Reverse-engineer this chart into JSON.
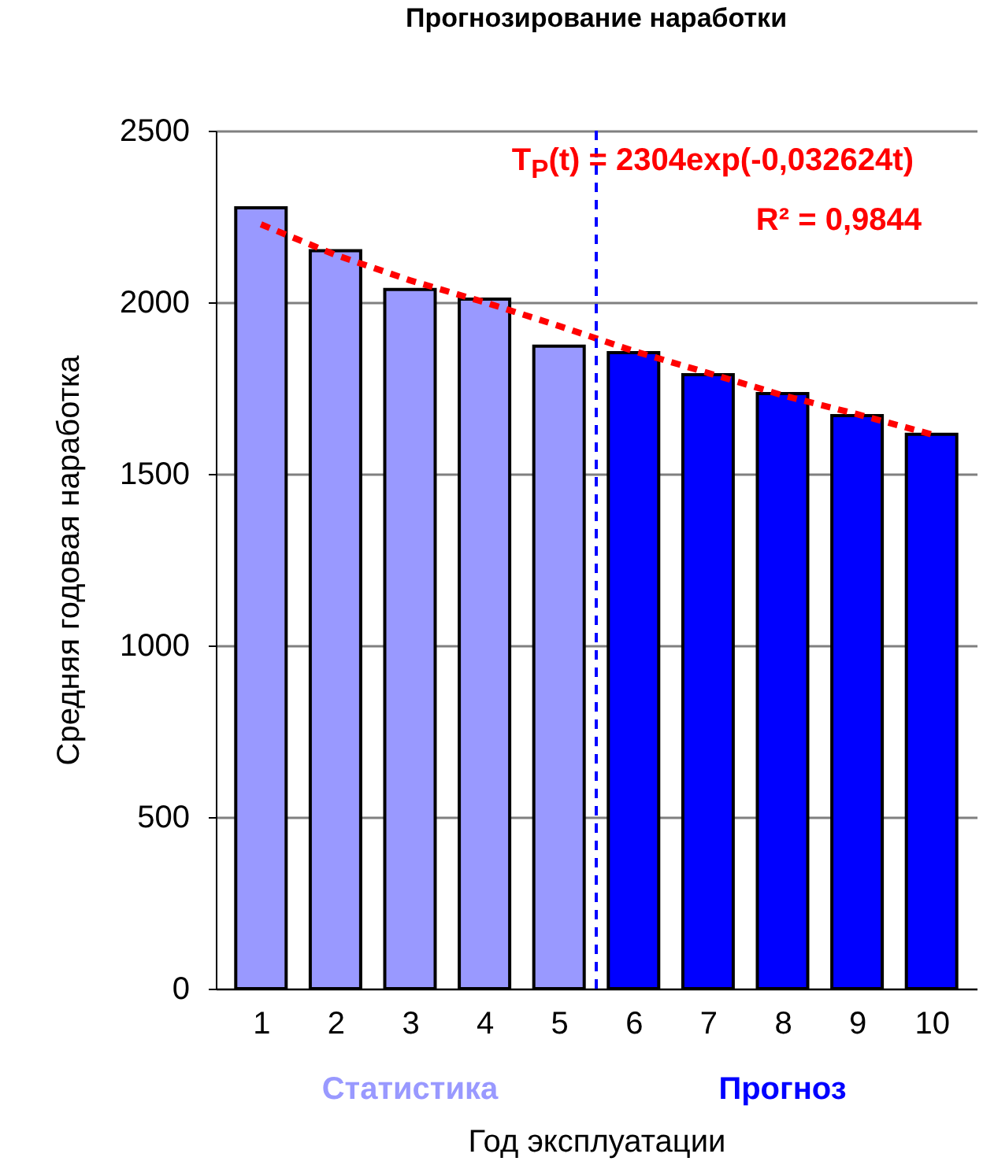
{
  "chart_data": {
    "type": "bar",
    "title": "Прогнозирование наработки",
    "xlabel": "Год эксплуатации",
    "ylabel": "Средняя годовая наработка",
    "x": [
      1,
      2,
      3,
      4,
      5,
      6,
      7,
      8,
      9,
      10
    ],
    "xlim": [
      0.5,
      10.5
    ],
    "xticks": [
      1,
      2,
      3,
      4,
      5,
      6,
      7,
      8,
      9,
      10
    ],
    "ylim": [
      0,
      2500
    ],
    "yticks": [
      0,
      500,
      1000,
      1500,
      2000,
      2500
    ],
    "grid": "y",
    "series": [
      {
        "name": "Статистика",
        "color": "#9999ff",
        "values": [
          2275,
          2150,
          2037,
          2009,
          1872,
          null,
          null,
          null,
          null,
          null
        ]
      },
      {
        "name": "Прогноз",
        "color": "#0000ff",
        "values": [
          null,
          null,
          null,
          null,
          null,
          1853,
          1789,
          1734,
          1670,
          1615
        ]
      },
      {
        "type": "line",
        "color": "#ff0000",
        "line_style": "dashed",
        "values": [
          2227,
          2138,
          2064,
          2000,
          1931,
          1858,
          1794,
          1729,
          1674,
          1615
        ]
      }
    ],
    "ref_lines": [
      {
        "axis": "x",
        "value": 5.5,
        "color": "#0000ff",
        "line_style": "dashed"
      }
    ],
    "annotations": [
      "T$_{P}$(t) = 2304exp(-0,032624t)",
      "R² = 0,9844"
    ]
  }
}
